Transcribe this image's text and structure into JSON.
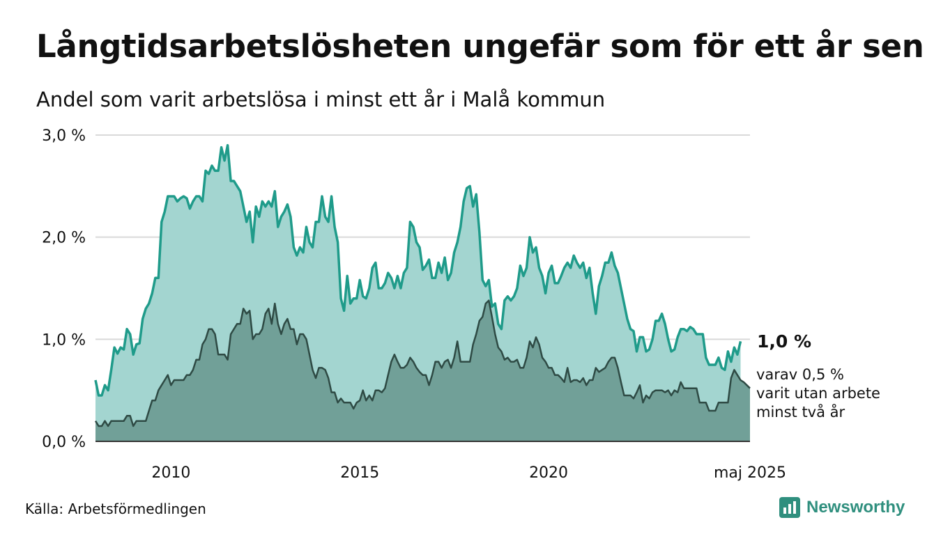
{
  "title": "Långtidsarbetslösheten ungefär som för ett år sen",
  "subtitle": "Andel som varit arbetslösa i minst ett år i Malå kommun",
  "source": "Källa: Arbetsförmedlingen",
  "brand": "Newsworthy",
  "colors": {
    "main_line": "#1f9b8a",
    "main_fill": "#a3d5d0",
    "sub_line": "#2e4a44",
    "sub_fill": "#71a098",
    "grid": "#d9d9d9",
    "axis": "#333333",
    "brand": "#2f8f7e"
  },
  "chart_data": {
    "type": "area",
    "x_start": "2008-01",
    "x_end": "2025-05",
    "ylim": [
      0,
      3.0
    ],
    "yticks": [
      0,
      1,
      2,
      3
    ],
    "ytick_labels": [
      "0,0 %",
      "1,0 %",
      "2,0 %",
      "3,0 %"
    ],
    "xticks": [
      "2010",
      "2015",
      "2020",
      "maj 2025"
    ],
    "xtick_values": [
      "2010-01",
      "2015-01",
      "2020-01",
      "2025-05"
    ],
    "grid": true,
    "series": [
      {
        "name": "",
        "values": [
          0.6,
          0.45,
          0.45,
          0.55,
          0.5,
          0.7,
          0.92,
          0.86,
          0.92,
          0.9,
          1.1,
          1.05,
          0.85,
          0.95,
          0.96,
          1.2,
          1.3,
          1.35,
          1.45,
          1.6,
          1.6,
          2.15,
          2.25,
          2.4,
          2.4,
          2.4,
          2.35,
          2.38,
          2.4,
          2.38,
          2.28,
          2.35,
          2.4,
          2.4,
          2.35,
          2.65,
          2.62,
          2.7,
          2.65,
          2.65,
          2.88,
          2.75,
          2.9,
          2.55,
          2.55,
          2.5,
          2.45,
          2.3,
          2.15,
          2.25,
          1.95,
          2.3,
          2.2,
          2.35,
          2.3,
          2.35,
          2.3,
          2.45,
          2.1,
          2.2,
          2.25,
          2.32,
          2.2,
          1.9,
          1.82,
          1.9,
          1.85,
          2.1,
          1.95,
          1.9,
          2.15,
          2.15,
          2.4,
          2.2,
          2.15,
          2.4,
          2.1,
          1.95,
          1.4,
          1.28,
          1.62,
          1.35,
          1.4,
          1.4,
          1.58,
          1.42,
          1.4,
          1.5,
          1.7,
          1.75,
          1.5,
          1.5,
          1.55,
          1.65,
          1.6,
          1.5,
          1.62,
          1.5,
          1.65,
          1.7,
          2.15,
          2.1,
          1.95,
          1.9,
          1.68,
          1.72,
          1.78,
          1.6,
          1.6,
          1.75,
          1.65,
          1.8,
          1.58,
          1.65,
          1.85,
          1.95,
          2.1,
          2.35,
          2.48,
          2.5,
          2.3,
          2.42,
          2.05,
          1.58,
          1.52,
          1.58,
          1.32,
          1.35,
          1.15,
          1.1,
          1.38,
          1.42,
          1.38,
          1.42,
          1.5,
          1.72,
          1.62,
          1.7,
          2.0,
          1.85,
          1.9,
          1.7,
          1.62,
          1.45,
          1.65,
          1.72,
          1.55,
          1.55,
          1.62,
          1.7,
          1.75,
          1.7,
          1.82,
          1.75,
          1.7,
          1.75,
          1.6,
          1.7,
          1.45,
          1.25,
          1.52,
          1.62,
          1.75,
          1.75,
          1.85,
          1.72,
          1.65,
          1.5,
          1.35,
          1.2,
          1.1,
          1.08,
          0.88,
          1.02,
          1.02,
          0.88,
          0.9,
          1.0,
          1.18,
          1.18,
          1.25,
          1.15,
          1.0,
          0.88,
          0.9,
          1.02,
          1.1,
          1.1,
          1.08,
          1.12,
          1.1,
          1.05,
          1.05,
          1.05,
          0.82,
          0.75,
          0.75,
          0.75,
          0.82,
          0.72,
          0.7,
          0.88,
          0.78,
          0.92,
          0.85,
          0.98
        ]
      },
      {
        "name": "",
        "values": [
          0.2,
          0.15,
          0.15,
          0.2,
          0.15,
          0.2,
          0.2,
          0.2,
          0.2,
          0.2,
          0.25,
          0.25,
          0.15,
          0.2,
          0.2,
          0.2,
          0.2,
          0.3,
          0.4,
          0.4,
          0.5,
          0.55,
          0.6,
          0.65,
          0.55,
          0.6,
          0.6,
          0.6,
          0.6,
          0.65,
          0.65,
          0.7,
          0.8,
          0.8,
          0.95,
          1.0,
          1.1,
          1.1,
          1.05,
          0.85,
          0.85,
          0.85,
          0.8,
          1.05,
          1.1,
          1.15,
          1.15,
          1.3,
          1.25,
          1.28,
          1.0,
          1.05,
          1.05,
          1.1,
          1.25,
          1.3,
          1.15,
          1.35,
          1.15,
          1.05,
          1.15,
          1.2,
          1.1,
          1.1,
          0.95,
          1.05,
          1.05,
          1.0,
          0.85,
          0.7,
          0.62,
          0.72,
          0.72,
          0.7,
          0.62,
          0.48,
          0.48,
          0.38,
          0.42,
          0.38,
          0.38,
          0.38,
          0.32,
          0.38,
          0.4,
          0.5,
          0.4,
          0.45,
          0.4,
          0.5,
          0.5,
          0.48,
          0.52,
          0.65,
          0.78,
          0.85,
          0.78,
          0.72,
          0.72,
          0.75,
          0.82,
          0.78,
          0.72,
          0.68,
          0.65,
          0.65,
          0.55,
          0.65,
          0.78,
          0.78,
          0.72,
          0.78,
          0.8,
          0.72,
          0.82,
          0.98,
          0.78,
          0.78,
          0.78,
          0.78,
          0.95,
          1.05,
          1.18,
          1.22,
          1.35,
          1.38,
          1.22,
          1.05,
          0.92,
          0.88,
          0.8,
          0.82,
          0.78,
          0.78,
          0.8,
          0.72,
          0.72,
          0.82,
          0.98,
          0.92,
          1.02,
          0.95,
          0.82,
          0.78,
          0.72,
          0.72,
          0.65,
          0.65,
          0.62,
          0.58,
          0.72,
          0.58,
          0.6,
          0.6,
          0.58,
          0.62,
          0.55,
          0.6,
          0.6,
          0.72,
          0.68,
          0.7,
          0.72,
          0.78,
          0.82,
          0.82,
          0.72,
          0.58,
          0.45,
          0.45,
          0.45,
          0.42,
          0.48,
          0.55,
          0.38,
          0.45,
          0.42,
          0.48,
          0.5,
          0.5,
          0.5,
          0.48,
          0.5,
          0.45,
          0.5,
          0.48,
          0.58,
          0.52,
          0.52,
          0.52,
          0.52,
          0.52,
          0.38,
          0.38,
          0.38,
          0.3,
          0.3,
          0.3,
          0.38,
          0.38,
          0.38,
          0.38,
          0.62,
          0.7,
          0.65,
          0.6,
          0.58,
          0.55,
          0.52
        ]
      }
    ],
    "annotations": {
      "value_label": "1,0 %",
      "sub_label_lines": [
        "varav 0,5 %",
        "varit utan arbete",
        "minst två år"
      ]
    }
  }
}
